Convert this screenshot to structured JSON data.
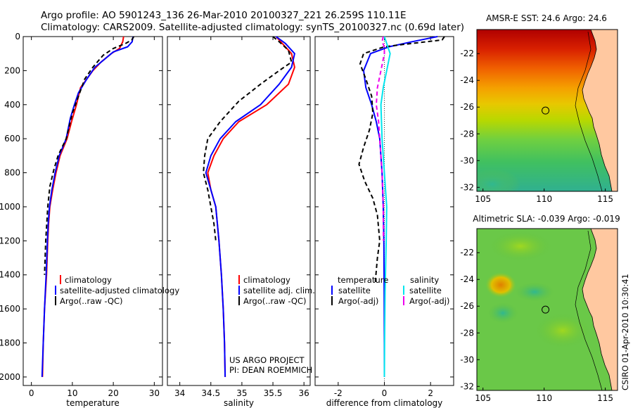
{
  "header": {
    "line1": "Argo profile: AO 5901243_136 26-Mar-2010 20100327_221 26.259S 110.11E",
    "line2": "Climatology: CARS2009. Satellite-adjusted climatology: synTS_20100327.nc (0.69d later)"
  },
  "side_label": "CSIRO 01-Apr-2010 10:30:41",
  "colors": {
    "climatology": "#ff0000",
    "satellite": "#0000ff",
    "argo": "#000000",
    "salinity_sat": "#00e5ee",
    "salinity_argo": "#ee00ee",
    "land": "#ffc8a0"
  },
  "chart_data": [
    {
      "type": "line",
      "id": "temperature",
      "xlabel": "temperature",
      "ylabel": "",
      "xlim": [
        -2,
        32
      ],
      "ylim": [
        2050,
        0
      ],
      "xticks": [
        0,
        10,
        20,
        30
      ],
      "yticks": [
        0,
        200,
        400,
        600,
        800,
        1000,
        1200,
        1400,
        1600,
        1800,
        2000
      ],
      "legend": [
        "climatology",
        "satellite-adjusted climatology",
        "Argo(..raw -QC)"
      ],
      "series": [
        {
          "name": "climatology",
          "color": "#ff0000",
          "dash": "",
          "points": [
            [
              22.5,
              0
            ],
            [
              22.3,
              30
            ],
            [
              21.5,
              70
            ],
            [
              19.5,
              100
            ],
            [
              17,
              150
            ],
            [
              15,
              200
            ],
            [
              13.5,
              250
            ],
            [
              12,
              300
            ],
            [
              11,
              400
            ],
            [
              9.8,
              500
            ],
            [
              8.7,
              600
            ],
            [
              7,
              700
            ],
            [
              6,
              800
            ],
            [
              5.2,
              900
            ],
            [
              4.5,
              1000
            ],
            [
              4.2,
              1100
            ],
            [
              4,
              1200
            ],
            [
              3.7,
              1400
            ],
            [
              3.2,
              1600
            ],
            [
              2.9,
              1800
            ],
            [
              2.7,
              2000
            ]
          ]
        },
        {
          "name": "satellite-adjusted climatology",
          "color": "#0000ff",
          "dash": "",
          "points": [
            [
              24.8,
              0
            ],
            [
              24.6,
              30
            ],
            [
              23.5,
              60
            ],
            [
              20,
              90
            ],
            [
              18,
              130
            ],
            [
              15.5,
              180
            ],
            [
              13.5,
              250
            ],
            [
              11.5,
              330
            ],
            [
              10.5,
              400
            ],
            [
              9.5,
              480
            ],
            [
              8.5,
              600
            ],
            [
              6.8,
              700
            ],
            [
              5.8,
              800
            ],
            [
              5,
              900
            ],
            [
              4.4,
              1000
            ],
            [
              4.1,
              1100
            ],
            [
              3.9,
              1200
            ],
            [
              3.6,
              1400
            ],
            [
              3.2,
              1600
            ],
            [
              2.9,
              1800
            ],
            [
              2.6,
              2000
            ]
          ]
        },
        {
          "name": "Argo(..raw -QC)",
          "color": "#000000",
          "dash": "6,4",
          "points": [
            [
              25,
              0
            ],
            [
              24.5,
              20
            ],
            [
              23,
              40
            ],
            [
              20,
              70
            ],
            [
              17.5,
              110
            ],
            [
              15,
              180
            ],
            [
              13,
              250
            ],
            [
              11.5,
              350
            ],
            [
              10,
              450
            ],
            [
              8.5,
              600
            ],
            [
              6.5,
              700
            ],
            [
              5.5,
              780
            ],
            [
              4.5,
              880
            ],
            [
              4,
              1000
            ],
            [
              3.5,
              1200
            ],
            [
              3.2,
              1400
            ]
          ]
        }
      ]
    },
    {
      "type": "line",
      "id": "salinity",
      "xlabel": "salinity",
      "ylabel": "",
      "xlim": [
        33.8,
        36.1
      ],
      "ylim": [
        2050,
        0
      ],
      "xticks": [
        34,
        34.5,
        35,
        35.5,
        36
      ],
      "yticks": [
        0,
        200,
        400,
        600,
        800,
        1000,
        1200,
        1400,
        1600,
        1800,
        2000
      ],
      "legend": [
        "climatology",
        "satellite adj. clim.",
        "Argo(..raw -QC)"
      ],
      "annotation": [
        "US ARGO PROJECT",
        "PI: DEAN ROEMMICH"
      ],
      "series": [
        {
          "name": "climatology",
          "color": "#ff0000",
          "dash": "",
          "points": [
            [
              35.55,
              0
            ],
            [
              35.65,
              40
            ],
            [
              35.8,
              100
            ],
            [
              35.85,
              180
            ],
            [
              35.75,
              280
            ],
            [
              35.4,
              400
            ],
            [
              34.95,
              500
            ],
            [
              34.7,
              600
            ],
            [
              34.55,
              700
            ],
            [
              34.45,
              800
            ],
            [
              34.5,
              900
            ],
            [
              34.58,
              1000
            ],
            [
              34.63,
              1200
            ],
            [
              34.67,
              1400
            ],
            [
              34.7,
              1600
            ],
            [
              34.72,
              1800
            ],
            [
              34.73,
              2000
            ]
          ]
        },
        {
          "name": "satellite adj. clim.",
          "color": "#0000ff",
          "dash": "",
          "points": [
            [
              35.55,
              0
            ],
            [
              35.7,
              40
            ],
            [
              35.85,
              100
            ],
            [
              35.8,
              180
            ],
            [
              35.6,
              280
            ],
            [
              35.3,
              400
            ],
            [
              34.9,
              500
            ],
            [
              34.65,
              600
            ],
            [
              34.5,
              700
            ],
            [
              34.42,
              800
            ],
            [
              34.5,
              900
            ],
            [
              34.58,
              1000
            ],
            [
              34.63,
              1200
            ],
            [
              34.67,
              1400
            ],
            [
              34.7,
              1600
            ],
            [
              34.72,
              1800
            ],
            [
              34.73,
              2000
            ]
          ]
        },
        {
          "name": "Argo(..raw -QC)",
          "color": "#000000",
          "dash": "6,4",
          "points": [
            [
              35.5,
              0
            ],
            [
              35.6,
              30
            ],
            [
              35.75,
              80
            ],
            [
              35.8,
              150
            ],
            [
              35.6,
              200
            ],
            [
              35.3,
              280
            ],
            [
              34.95,
              380
            ],
            [
              34.65,
              500
            ],
            [
              34.45,
              600
            ],
            [
              34.4,
              700
            ],
            [
              34.38,
              800
            ],
            [
              34.45,
              900
            ],
            [
              34.5,
              1000
            ],
            [
              34.55,
              1100
            ],
            [
              34.58,
              1200
            ]
          ]
        }
      ]
    },
    {
      "type": "line",
      "id": "difference",
      "xlabel": "difference from climatology",
      "ylabel": "",
      "xlim": [
        -3,
        3
      ],
      "ylim": [
        2050,
        0
      ],
      "xticks": [
        -2,
        0,
        2
      ],
      "yticks": [
        0,
        200,
        400,
        600,
        800,
        1000,
        1200,
        1400,
        1600,
        1800,
        2000
      ],
      "legend_headers": [
        "temperature",
        "salinity"
      ],
      "legend": [
        "satellite",
        "Argo(-adj)",
        "satellite",
        "Argo(-adj)"
      ],
      "series": [
        {
          "name": "satellite",
          "group": "temperature",
          "color": "#0000ff",
          "dash": "",
          "points": [
            [
              2.3,
              0
            ],
            [
              1.2,
              30
            ],
            [
              0.2,
              60
            ],
            [
              -0.6,
              100
            ],
            [
              -0.9,
              200
            ],
            [
              -0.8,
              300
            ],
            [
              -0.55,
              400
            ],
            [
              -0.35,
              500
            ],
            [
              -0.2,
              600
            ],
            [
              -0.1,
              800
            ],
            [
              -0.05,
              1000
            ],
            [
              -0.02,
              1200
            ],
            [
              -0.01,
              1500
            ],
            [
              0,
              1800
            ],
            [
              0,
              2000
            ]
          ]
        },
        {
          "name": "Argo(-adj)",
          "group": "temperature",
          "color": "#000000",
          "dash": "6,4",
          "points": [
            [
              2.6,
              0
            ],
            [
              2.5,
              20
            ],
            [
              1.2,
              40
            ],
            [
              0,
              60
            ],
            [
              -0.9,
              100
            ],
            [
              -1.05,
              160
            ],
            [
              -0.8,
              250
            ],
            [
              -0.55,
              350
            ],
            [
              -0.5,
              450
            ],
            [
              -0.65,
              550
            ],
            [
              -0.9,
              650
            ],
            [
              -1.1,
              750
            ],
            [
              -0.85,
              850
            ],
            [
              -0.5,
              950
            ],
            [
              -0.3,
              1050
            ],
            [
              -0.2,
              1200
            ],
            [
              -0.3,
              1300
            ],
            [
              -0.4,
              1450
            ]
          ]
        },
        {
          "name": "satellite",
          "group": "salinity",
          "color": "#00e5ee",
          "dash": "",
          "points": [
            [
              0,
              0
            ],
            [
              0.1,
              40
            ],
            [
              0.25,
              100
            ],
            [
              0.1,
              200
            ],
            [
              -0.05,
              300
            ],
            [
              -0.15,
              400
            ],
            [
              -0.1,
              600
            ],
            [
              0,
              800
            ],
            [
              0.1,
              1000
            ],
            [
              0.08,
              1200
            ],
            [
              0.03,
              1500
            ],
            [
              0.01,
              1800
            ],
            [
              0,
              2000
            ]
          ]
        },
        {
          "name": "Argo(-adj)",
          "group": "salinity",
          "color": "#ee00ee",
          "dash": "6,4",
          "points": [
            [
              -0.05,
              0
            ],
            [
              -0.1,
              30
            ],
            [
              0,
              60
            ],
            [
              0,
              100
            ],
            [
              -0.15,
              200
            ],
            [
              -0.3,
              300
            ],
            [
              -0.35,
              400
            ],
            [
              -0.25,
              500
            ],
            [
              -0.2,
              600
            ],
            [
              -0.1,
              800
            ],
            [
              -0.05,
              1000
            ],
            [
              -0.04,
              1200
            ]
          ]
        }
      ]
    },
    {
      "type": "heatmap",
      "id": "sst-map",
      "title": "AMSR-E SST: 24.6 Argo: 24.6",
      "xlim": [
        104.5,
        116
      ],
      "ylim": [
        -32.3,
        -20.2
      ],
      "xticks": [
        105,
        110,
        115
      ],
      "yticks": [
        -22,
        -24,
        -26,
        -28,
        -30,
        -32
      ],
      "marker": [
        110.11,
        -26.259
      ]
    },
    {
      "type": "heatmap",
      "id": "sla-map",
      "title": "Altimetric SLA: -0.039 Argo: -0.019",
      "xlim": [
        104.5,
        116
      ],
      "ylim": [
        -32.3,
        -20.2
      ],
      "xticks": [
        105,
        110,
        115
      ],
      "yticks": [
        -22,
        -24,
        -26,
        -28,
        -30,
        -32
      ],
      "marker": [
        110.11,
        -26.259
      ]
    }
  ]
}
